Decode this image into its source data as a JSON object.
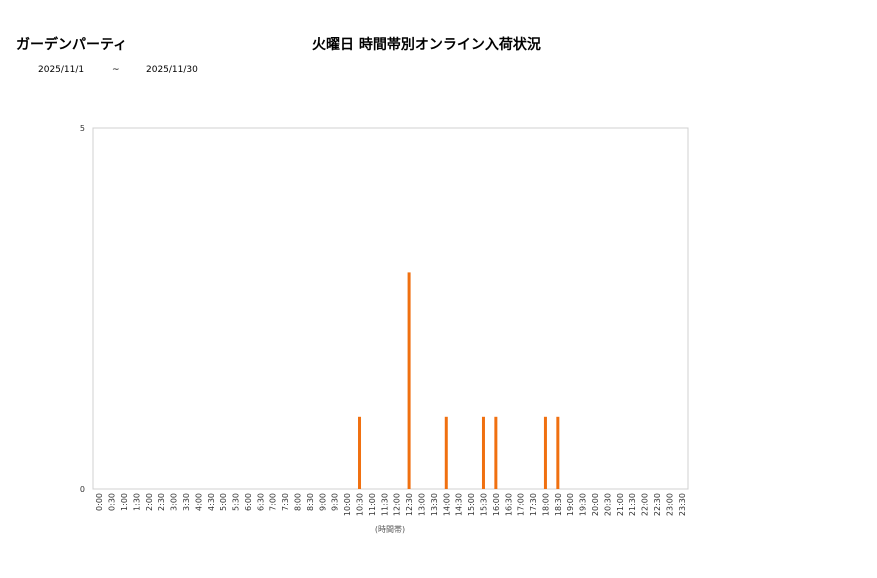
{
  "header": {
    "shop_name": "ガーデンパーティ",
    "title": "火曜日 時間帯別オンライン入荷状況",
    "date_from": "2025/11/1",
    "date_separator": "~",
    "date_to": "2025/11/30"
  },
  "chart_data": {
    "type": "bar",
    "title": "火曜日 時間帯別オンライン入荷状況",
    "xlabel": "(時間帯)",
    "ylabel": "",
    "ylim": [
      0,
      5
    ],
    "y_ticks": [
      0,
      5
    ],
    "grid": false,
    "bar_color": "#f07010",
    "categories": [
      "0:00",
      "0:30",
      "1:00",
      "1:30",
      "2:00",
      "2:30",
      "3:00",
      "3:30",
      "4:00",
      "4:30",
      "5:00",
      "5:30",
      "6:00",
      "6:30",
      "7:00",
      "7:30",
      "8:00",
      "8:30",
      "9:00",
      "9:30",
      "10:00",
      "10:30",
      "11:00",
      "11:30",
      "12:00",
      "12:30",
      "13:00",
      "13:30",
      "14:00",
      "14:30",
      "15:00",
      "15:30",
      "16:00",
      "16:30",
      "17:00",
      "17:30",
      "18:00",
      "18:30",
      "19:00",
      "19:30",
      "20:00",
      "20:30",
      "21:00",
      "21:30",
      "22:00",
      "22:30",
      "23:00",
      "23:30"
    ],
    "values": [
      0,
      0,
      0,
      0,
      0,
      0,
      0,
      0,
      0,
      0,
      0,
      0,
      0,
      0,
      0,
      0,
      0,
      0,
      0,
      0,
      0,
      1,
      0,
      0,
      0,
      3,
      0,
      0,
      1,
      0,
      0,
      1,
      1,
      0,
      0,
      0,
      1,
      1,
      0,
      0,
      0,
      0,
      0,
      0,
      0,
      0,
      0,
      0
    ]
  }
}
